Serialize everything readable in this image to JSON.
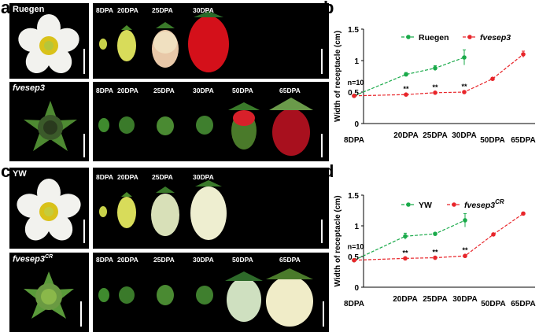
{
  "panel_letters": [
    "a",
    "b",
    "c",
    "d"
  ],
  "panel_a": {
    "top_label": "Ruegen",
    "bottom_label": "fvesep3",
    "top_stages": [
      "8DPA",
      "20DPA",
      "25DPA",
      "30DPA"
    ],
    "bottom_stages": [
      "8DPA",
      "20DPA",
      "25DPA",
      "30DPA",
      "50DPA",
      "65DPA"
    ]
  },
  "panel_c": {
    "top_label": "YW",
    "bottom_label_main": "fvesep3",
    "bottom_label_sup": "CR",
    "top_stages": [
      "8DPA",
      "20DPA",
      "25DPA",
      "30DPA"
    ],
    "bottom_stages": [
      "8DPA",
      "20DPA",
      "25DPA",
      "30DPA",
      "50DPA",
      "65DPA"
    ]
  },
  "colors": {
    "wild_type": "#1aaa4a",
    "mutant": "#e8252a",
    "axis": "#000000",
    "photo_bg": "#000000"
  },
  "chart_data": [
    {
      "type": "line",
      "panel": "b",
      "ylabel": "Width of receptacle (cm)",
      "xlabel": "",
      "categories": [
        "8DPA",
        "20DPA",
        "25DPA",
        "30DPA",
        "50DPA",
        "65DPA"
      ],
      "ylim": [
        0,
        1.5
      ],
      "yticks": [
        "0",
        "0.5",
        "1",
        "1.5"
      ],
      "annotation": "n=10",
      "sig_marks": [
        "**",
        "**",
        "**"
      ],
      "series": [
        {
          "name": "Ruegen",
          "italic": false,
          "color": "#1aaa4a",
          "values": [
            0.44,
            0.78,
            0.88,
            1.05,
            null,
            null
          ],
          "errors": [
            0.01,
            0.03,
            0.04,
            0.12,
            null,
            null
          ]
        },
        {
          "name": "fvesep3",
          "italic": true,
          "color": "#e8252a",
          "values": [
            0.44,
            0.46,
            0.49,
            0.5,
            0.71,
            1.1
          ],
          "errors": [
            0.01,
            0.01,
            0.01,
            0.01,
            0.02,
            0.05
          ]
        }
      ]
    },
    {
      "type": "line",
      "panel": "d",
      "ylabel": "Width of receptacle (cm)",
      "xlabel": "",
      "categories": [
        "8DPA",
        "20DPA",
        "25DPA",
        "30DPA",
        "50DPA",
        "65DPA"
      ],
      "ylim": [
        0,
        1.5
      ],
      "yticks": [
        "0",
        "0.5",
        "1",
        "1.5"
      ],
      "annotation": "n=10",
      "sig_marks": [
        "**",
        "**",
        "**"
      ],
      "series": [
        {
          "name": "YW",
          "italic": false,
          "color": "#1aaa4a",
          "values": [
            0.44,
            0.83,
            0.87,
            1.09,
            null,
            null
          ],
          "errors": [
            0.01,
            0.05,
            0.02,
            0.11,
            null,
            null
          ]
        },
        {
          "name": "fvesep3",
          "name_sup": "CR",
          "italic": true,
          "color": "#e8252a",
          "values": [
            0.44,
            0.47,
            0.48,
            0.51,
            0.86,
            1.2
          ],
          "errors": [
            0.01,
            0.01,
            0.01,
            0.01,
            0.02,
            0.02
          ]
        }
      ]
    }
  ]
}
